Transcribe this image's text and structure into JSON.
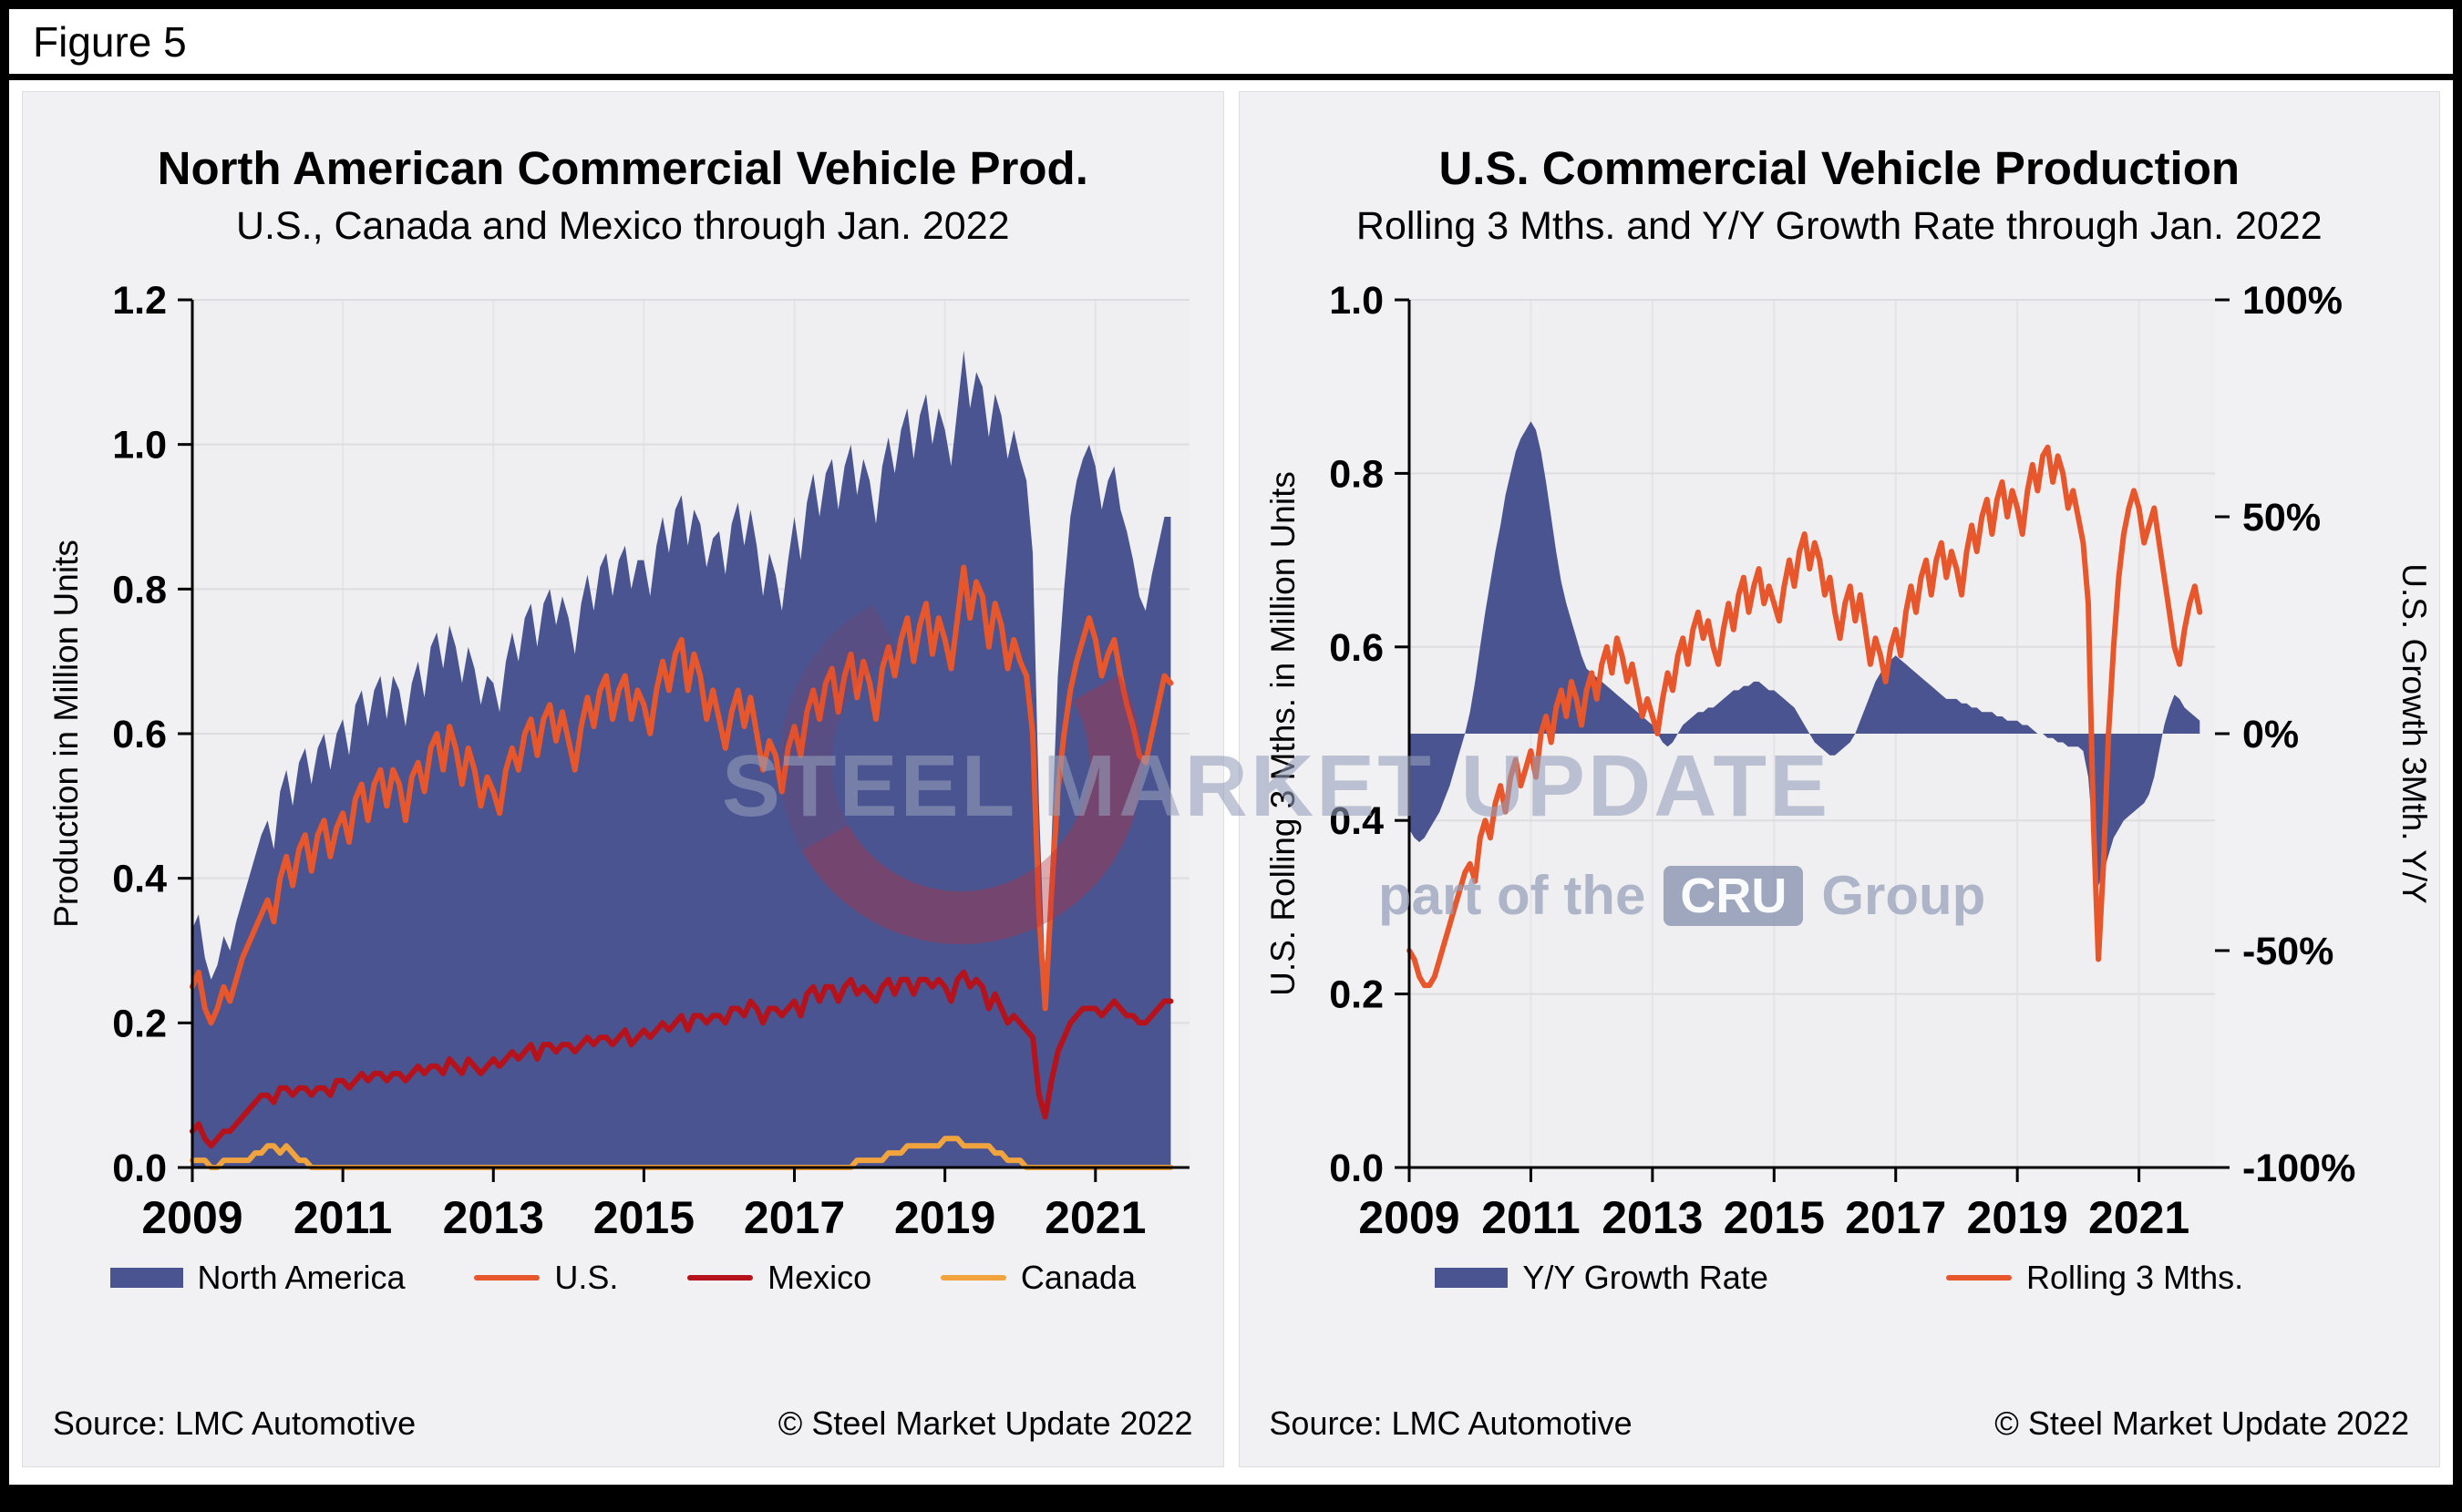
{
  "figure_label": "Figure 5",
  "watermark": {
    "title": "STEEL MARKET UPDATE",
    "part_prefix": "part of the",
    "cru": "CRU",
    "part_suffix": "Group"
  },
  "chart_data": [
    {
      "type": "area",
      "title": "North American Commercial Vehicle Prod.",
      "subtitle": "U.S., Canada and Mexico through Jan. 2022",
      "ylabel": "Production in Million Units",
      "ylim": [
        0,
        1.2
      ],
      "yticks": [
        "0.0",
        "0.2",
        "0.4",
        "0.6",
        "0.8",
        "1.0",
        "1.2"
      ],
      "ytick_values": [
        0,
        0.2,
        0.4,
        0.6,
        0.8,
        1.0,
        1.2
      ],
      "x_start_year": 2009,
      "x_interval": "monthly",
      "x_end": "Jan. 2022",
      "xticks": [
        2009,
        2011,
        2013,
        2015,
        2017,
        2019,
        2021
      ],
      "grid": true,
      "legend_position": "bottom",
      "source": "Source: LMC Automotive",
      "copyright": "© Steel Market Update 2022",
      "series": [
        {
          "name": "North America",
          "type": "area",
          "color": "#4a5490",
          "values": [
            0.33,
            0.35,
            0.29,
            0.26,
            0.28,
            0.32,
            0.3,
            0.34,
            0.37,
            0.4,
            0.43,
            0.46,
            0.48,
            0.44,
            0.52,
            0.55,
            0.5,
            0.56,
            0.58,
            0.53,
            0.58,
            0.6,
            0.55,
            0.6,
            0.62,
            0.57,
            0.64,
            0.66,
            0.61,
            0.66,
            0.68,
            0.62,
            0.68,
            0.66,
            0.61,
            0.67,
            0.7,
            0.65,
            0.72,
            0.74,
            0.69,
            0.75,
            0.72,
            0.67,
            0.72,
            0.69,
            0.64,
            0.68,
            0.67,
            0.63,
            0.7,
            0.74,
            0.7,
            0.76,
            0.78,
            0.72,
            0.78,
            0.8,
            0.75,
            0.79,
            0.76,
            0.71,
            0.78,
            0.82,
            0.77,
            0.83,
            0.85,
            0.79,
            0.84,
            0.86,
            0.8,
            0.84,
            0.84,
            0.79,
            0.86,
            0.9,
            0.85,
            0.91,
            0.93,
            0.86,
            0.91,
            0.89,
            0.83,
            0.87,
            0.88,
            0.82,
            0.89,
            0.92,
            0.86,
            0.91,
            0.86,
            0.79,
            0.85,
            0.82,
            0.77,
            0.84,
            0.9,
            0.84,
            0.92,
            0.96,
            0.9,
            0.96,
            0.98,
            0.91,
            0.97,
            1.0,
            0.93,
            0.98,
            0.95,
            0.89,
            0.97,
            1.01,
            0.96,
            1.02,
            1.05,
            0.98,
            1.04,
            1.07,
            1.0,
            1.05,
            1.02,
            0.97,
            1.05,
            1.13,
            1.05,
            1.1,
            1.08,
            1.01,
            1.07,
            1.04,
            0.98,
            1.02,
            0.98,
            0.95,
            0.85,
            0.5,
            0.26,
            0.45,
            0.68,
            0.8,
            0.9,
            0.95,
            0.98,
            1.0,
            0.97,
            0.91,
            0.95,
            0.97,
            0.91,
            0.88,
            0.84,
            0.79,
            0.77,
            0.82,
            0.86,
            0.9,
            0.9
          ]
        },
        {
          "name": "U.S.",
          "type": "line",
          "color": "#e8562c",
          "values": [
            0.25,
            0.27,
            0.22,
            0.2,
            0.22,
            0.25,
            0.23,
            0.26,
            0.29,
            0.31,
            0.33,
            0.35,
            0.37,
            0.34,
            0.4,
            0.43,
            0.39,
            0.44,
            0.46,
            0.41,
            0.46,
            0.48,
            0.43,
            0.47,
            0.49,
            0.45,
            0.51,
            0.53,
            0.48,
            0.53,
            0.55,
            0.5,
            0.55,
            0.53,
            0.48,
            0.54,
            0.56,
            0.52,
            0.58,
            0.6,
            0.55,
            0.61,
            0.58,
            0.53,
            0.58,
            0.55,
            0.5,
            0.54,
            0.52,
            0.49,
            0.55,
            0.58,
            0.55,
            0.6,
            0.62,
            0.57,
            0.62,
            0.64,
            0.59,
            0.63,
            0.59,
            0.55,
            0.61,
            0.65,
            0.61,
            0.66,
            0.68,
            0.62,
            0.66,
            0.68,
            0.62,
            0.66,
            0.64,
            0.6,
            0.66,
            0.7,
            0.66,
            0.71,
            0.73,
            0.66,
            0.71,
            0.68,
            0.62,
            0.66,
            0.62,
            0.58,
            0.63,
            0.66,
            0.61,
            0.65,
            0.6,
            0.55,
            0.59,
            0.57,
            0.52,
            0.58,
            0.61,
            0.57,
            0.63,
            0.66,
            0.62,
            0.67,
            0.69,
            0.63,
            0.68,
            0.71,
            0.65,
            0.7,
            0.67,
            0.62,
            0.69,
            0.72,
            0.68,
            0.73,
            0.76,
            0.7,
            0.75,
            0.78,
            0.71,
            0.76,
            0.73,
            0.69,
            0.76,
            0.83,
            0.76,
            0.81,
            0.79,
            0.72,
            0.78,
            0.75,
            0.69,
            0.73,
            0.7,
            0.68,
            0.6,
            0.35,
            0.22,
            0.38,
            0.52,
            0.6,
            0.66,
            0.7,
            0.73,
            0.76,
            0.73,
            0.68,
            0.71,
            0.73,
            0.68,
            0.64,
            0.61,
            0.57,
            0.56,
            0.6,
            0.64,
            0.68,
            0.67
          ]
        },
        {
          "name": "Mexico",
          "type": "line",
          "color": "#b5121b",
          "values": [
            0.05,
            0.06,
            0.04,
            0.03,
            0.04,
            0.05,
            0.05,
            0.06,
            0.07,
            0.08,
            0.09,
            0.1,
            0.1,
            0.09,
            0.11,
            0.11,
            0.1,
            0.11,
            0.11,
            0.1,
            0.11,
            0.11,
            0.1,
            0.12,
            0.12,
            0.11,
            0.12,
            0.13,
            0.12,
            0.13,
            0.13,
            0.12,
            0.13,
            0.13,
            0.12,
            0.13,
            0.14,
            0.13,
            0.14,
            0.14,
            0.13,
            0.15,
            0.14,
            0.13,
            0.15,
            0.14,
            0.13,
            0.14,
            0.15,
            0.14,
            0.15,
            0.16,
            0.15,
            0.16,
            0.17,
            0.15,
            0.17,
            0.17,
            0.16,
            0.17,
            0.17,
            0.16,
            0.17,
            0.18,
            0.17,
            0.18,
            0.18,
            0.17,
            0.18,
            0.19,
            0.17,
            0.18,
            0.19,
            0.18,
            0.19,
            0.2,
            0.19,
            0.2,
            0.21,
            0.19,
            0.21,
            0.21,
            0.2,
            0.21,
            0.21,
            0.2,
            0.22,
            0.22,
            0.21,
            0.23,
            0.22,
            0.2,
            0.22,
            0.22,
            0.21,
            0.22,
            0.23,
            0.21,
            0.24,
            0.25,
            0.23,
            0.25,
            0.25,
            0.23,
            0.25,
            0.26,
            0.24,
            0.25,
            0.24,
            0.23,
            0.25,
            0.26,
            0.24,
            0.26,
            0.26,
            0.24,
            0.26,
            0.26,
            0.25,
            0.26,
            0.25,
            0.23,
            0.26,
            0.27,
            0.25,
            0.26,
            0.25,
            0.22,
            0.24,
            0.22,
            0.2,
            0.21,
            0.2,
            0.19,
            0.18,
            0.1,
            0.07,
            0.12,
            0.16,
            0.18,
            0.2,
            0.21,
            0.22,
            0.22,
            0.22,
            0.21,
            0.22,
            0.23,
            0.22,
            0.21,
            0.21,
            0.2,
            0.2,
            0.21,
            0.22,
            0.23,
            0.23
          ]
        },
        {
          "name": "Canada",
          "type": "line",
          "color": "#f1a43e",
          "values": [
            0.01,
            0.01,
            0.01,
            0.0,
            0.0,
            0.01,
            0.01,
            0.01,
            0.01,
            0.01,
            0.02,
            0.02,
            0.03,
            0.03,
            0.02,
            0.03,
            0.02,
            0.01,
            0.01,
            0.0,
            0.0,
            0.0,
            0.0,
            0.0,
            0.0,
            0.0,
            0.0,
            0.0,
            0.0,
            0.0,
            0.0,
            0.0,
            0.0,
            0.0,
            0.0,
            0.0,
            0.0,
            0.0,
            0.0,
            0.0,
            0.0,
            0.0,
            0.0,
            0.0,
            0.0,
            0.0,
            0.0,
            0.0,
            0.0,
            0.0,
            0.0,
            0.0,
            0.0,
            0.0,
            0.0,
            0.0,
            0.0,
            0.0,
            0.0,
            0.0,
            0.0,
            0.0,
            0.0,
            0.0,
            0.0,
            0.0,
            0.0,
            0.0,
            0.0,
            0.0,
            0.0,
            0.0,
            0.0,
            0.0,
            0.0,
            0.0,
            0.0,
            0.0,
            0.0,
            0.0,
            0.0,
            0.0,
            0.0,
            0.0,
            0.0,
            0.0,
            0.0,
            0.0,
            0.0,
            0.0,
            0.0,
            0.0,
            0.0,
            0.0,
            0.0,
            0.0,
            0.0,
            0.0,
            0.0,
            0.0,
            0.0,
            0.0,
            0.0,
            0.0,
            0.0,
            0.0,
            0.01,
            0.01,
            0.01,
            0.01,
            0.01,
            0.02,
            0.02,
            0.02,
            0.03,
            0.03,
            0.03,
            0.03,
            0.03,
            0.03,
            0.04,
            0.04,
            0.04,
            0.03,
            0.03,
            0.03,
            0.03,
            0.03,
            0.02,
            0.02,
            0.01,
            0.01,
            0.01,
            0.0,
            0.0,
            0.0,
            0.0,
            0.0,
            0.0,
            0.0,
            0.0,
            0.0,
            0.0,
            0.0,
            0.0,
            0.0,
            0.0,
            0.0,
            0.0,
            0.0,
            0.0,
            0.0,
            0.0,
            0.0,
            0.0,
            0.0,
            0.0
          ]
        }
      ]
    },
    {
      "type": "area",
      "title": "U.S. Commercial Vehicle Production",
      "subtitle": "Rolling 3 Mths. and Y/Y Growth Rate through Jan. 2022",
      "ylabel": "U.S. Rolling 3 Mths. in Million Units",
      "ylabel_right": "U.S. Growth 3Mth. Y/Y",
      "ylim": [
        0,
        1.0
      ],
      "yticks": [
        "0.0",
        "0.2",
        "0.4",
        "0.6",
        "0.8",
        "1.0"
      ],
      "ytick_values": [
        0,
        0.2,
        0.4,
        0.6,
        0.8,
        1.0
      ],
      "y2lim": [
        -100,
        100
      ],
      "y2ticks": [
        "-100%",
        "-50%",
        "0%",
        "50%",
        "100%"
      ],
      "y2tick_values": [
        -100,
        -50,
        0,
        50,
        100
      ],
      "x_start_year": 2009,
      "x_interval": "monthly",
      "x_end": "Jan. 2022",
      "xticks": [
        2009,
        2011,
        2013,
        2015,
        2017,
        2019,
        2021
      ],
      "grid": true,
      "legend_position": "bottom",
      "source": "Source: LMC Automotive",
      "copyright": "© Steel Market Update 2022",
      "series": [
        {
          "name": "Y/Y Growth Rate",
          "type": "area",
          "axis": "right",
          "baseline": 0,
          "unit": "%",
          "color": "#4a5490",
          "values": [
            -22,
            -24,
            -25,
            -24,
            -22,
            -20,
            -18,
            -15,
            -12,
            -8,
            -4,
            0,
            5,
            12,
            20,
            28,
            35,
            42,
            48,
            55,
            60,
            65,
            68,
            70,
            72,
            70,
            65,
            58,
            50,
            42,
            35,
            30,
            26,
            22,
            18,
            15,
            14,
            13,
            12,
            11,
            10,
            9,
            8,
            7,
            6,
            5,
            4,
            3,
            2,
            0,
            -2,
            -3,
            -2,
            0,
            2,
            3,
            4,
            5,
            5,
            6,
            6,
            7,
            8,
            9,
            10,
            10,
            11,
            11,
            12,
            12,
            11,
            10,
            10,
            9,
            8,
            7,
            6,
            4,
            2,
            0,
            -2,
            -3,
            -4,
            -5,
            -5,
            -4,
            -3,
            -2,
            0,
            3,
            6,
            9,
            12,
            14,
            16,
            17,
            18,
            17,
            16,
            15,
            14,
            13,
            12,
            11,
            10,
            9,
            8,
            8,
            8,
            7,
            7,
            6,
            6,
            5,
            5,
            5,
            4,
            4,
            3,
            3,
            3,
            2,
            2,
            1,
            0,
            0,
            -1,
            -1,
            -2,
            -2,
            -3,
            -3,
            -3,
            -4,
            -10,
            -25,
            -35,
            -32,
            -28,
            -24,
            -22,
            -20,
            -19,
            -18,
            -17,
            -16,
            -14,
            -10,
            -4,
            2,
            6,
            9,
            8,
            6,
            5,
            4,
            3
          ]
        },
        {
          "name": "Rolling 3 Mths.",
          "type": "line",
          "color": "#e8562c",
          "unit": "million units",
          "values": [
            0.25,
            0.24,
            0.22,
            0.21,
            0.21,
            0.22,
            0.24,
            0.26,
            0.28,
            0.3,
            0.32,
            0.34,
            0.35,
            0.33,
            0.38,
            0.4,
            0.38,
            0.42,
            0.44,
            0.41,
            0.45,
            0.47,
            0.44,
            0.46,
            0.48,
            0.45,
            0.5,
            0.52,
            0.49,
            0.53,
            0.55,
            0.52,
            0.56,
            0.54,
            0.51,
            0.55,
            0.57,
            0.54,
            0.58,
            0.6,
            0.57,
            0.61,
            0.59,
            0.56,
            0.58,
            0.55,
            0.52,
            0.54,
            0.52,
            0.5,
            0.54,
            0.57,
            0.55,
            0.59,
            0.61,
            0.58,
            0.62,
            0.64,
            0.61,
            0.63,
            0.6,
            0.58,
            0.62,
            0.65,
            0.62,
            0.66,
            0.68,
            0.64,
            0.67,
            0.69,
            0.65,
            0.67,
            0.65,
            0.63,
            0.67,
            0.7,
            0.67,
            0.71,
            0.73,
            0.69,
            0.72,
            0.7,
            0.66,
            0.68,
            0.64,
            0.61,
            0.65,
            0.67,
            0.63,
            0.66,
            0.62,
            0.58,
            0.61,
            0.59,
            0.56,
            0.6,
            0.62,
            0.59,
            0.64,
            0.67,
            0.64,
            0.68,
            0.7,
            0.66,
            0.7,
            0.72,
            0.68,
            0.71,
            0.69,
            0.66,
            0.71,
            0.74,
            0.71,
            0.75,
            0.77,
            0.73,
            0.77,
            0.79,
            0.75,
            0.78,
            0.76,
            0.73,
            0.78,
            0.81,
            0.78,
            0.82,
            0.83,
            0.79,
            0.82,
            0.8,
            0.76,
            0.78,
            0.75,
            0.72,
            0.65,
            0.4,
            0.24,
            0.35,
            0.5,
            0.6,
            0.68,
            0.73,
            0.76,
            0.78,
            0.76,
            0.72,
            0.74,
            0.76,
            0.72,
            0.68,
            0.64,
            0.6,
            0.58,
            0.62,
            0.65,
            0.67,
            0.64
          ]
        }
      ]
    }
  ]
}
